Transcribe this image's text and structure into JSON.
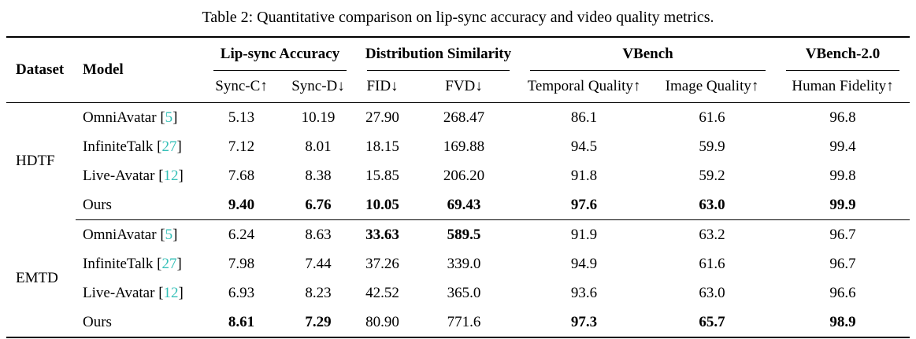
{
  "caption": "Table 2: Quantitative comparison on lip-sync accuracy and video quality metrics.",
  "colors": {
    "text": "#000000",
    "background": "#ffffff",
    "rule": "#000000",
    "citation": "#35c0b8"
  },
  "table": {
    "corner": [
      "Dataset",
      "Model"
    ],
    "groups": [
      {
        "label": "Lip-sync Accuracy"
      },
      {
        "label": "Distribution Similarity"
      },
      {
        "label": "VBench"
      },
      {
        "label": "VBench-2.0"
      }
    ],
    "subheaders": [
      "Sync-C↑",
      "Sync-D↓",
      "FID↓",
      "FVD↓",
      "Temporal Quality↑",
      "Image Quality↑",
      "Human Fidelity↑"
    ],
    "sections": [
      {
        "dataset": "HDTF",
        "rows": [
          {
            "model": "OmniAvatar",
            "cite": "5",
            "values": [
              "5.13",
              "10.19",
              "27.90",
              "268.47",
              "86.1",
              "61.6",
              "96.8"
            ],
            "bold": [
              false,
              false,
              false,
              false,
              false,
              false,
              false
            ]
          },
          {
            "model": "InfiniteTalk",
            "cite": "27",
            "values": [
              "7.12",
              "8.01",
              "18.15",
              "169.88",
              "94.5",
              "59.9",
              "99.4"
            ],
            "bold": [
              false,
              false,
              false,
              false,
              false,
              false,
              false
            ]
          },
          {
            "model": "Live-Avatar",
            "cite": "12",
            "values": [
              "7.68",
              "8.38",
              "15.85",
              "206.20",
              "91.8",
              "59.2",
              "99.8"
            ],
            "bold": [
              false,
              false,
              false,
              false,
              false,
              false,
              false
            ]
          },
          {
            "model": "Ours",
            "cite": "",
            "values": [
              "9.40",
              "6.76",
              "10.05",
              "69.43",
              "97.6",
              "63.0",
              "99.9"
            ],
            "bold": [
              true,
              true,
              true,
              true,
              true,
              true,
              true
            ]
          }
        ]
      },
      {
        "dataset": "EMTD",
        "rows": [
          {
            "model": "OmniAvatar",
            "cite": "5",
            "values": [
              "6.24",
              "8.63",
              "33.63",
              "589.5",
              "91.9",
              "63.2",
              "96.7"
            ],
            "bold": [
              false,
              false,
              true,
              true,
              false,
              false,
              false
            ]
          },
          {
            "model": "InfiniteTalk",
            "cite": "27",
            "values": [
              "7.98",
              "7.44",
              "37.26",
              "339.0",
              "94.9",
              "61.6",
              "96.7"
            ],
            "bold": [
              false,
              false,
              false,
              false,
              false,
              false,
              false
            ]
          },
          {
            "model": "Live-Avatar",
            "cite": "12",
            "values": [
              "6.93",
              "8.23",
              "42.52",
              "365.0",
              "93.6",
              "63.0",
              "96.6"
            ],
            "bold": [
              false,
              false,
              false,
              false,
              false,
              false,
              false
            ]
          },
          {
            "model": "Ours",
            "cite": "",
            "values": [
              "8.61",
              "7.29",
              "80.90",
              "771.6",
              "97.3",
              "65.7",
              "98.9"
            ],
            "bold": [
              true,
              true,
              false,
              false,
              true,
              true,
              true
            ]
          }
        ]
      }
    ]
  }
}
